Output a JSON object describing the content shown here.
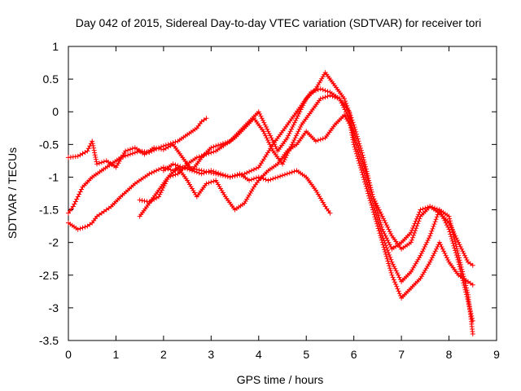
{
  "chart_data": {
    "type": "scatter",
    "title": "Day 042 of 2015, Sidereal Day-to-day VTEC variation (SDTVAR) for receiver tori",
    "xlabel": "GPS time / hours",
    "ylabel": "SDTVAR / TECUs",
    "xlim": [
      0,
      9
    ],
    "ylim": [
      -3.5,
      1
    ],
    "xticks": [
      "0",
      "1",
      "2",
      "3",
      "4",
      "5",
      "6",
      "7",
      "8",
      "9"
    ],
    "yticks": [
      "-3.5",
      "-3",
      "-2.5",
      "-2",
      "-1.5",
      "-1",
      "-0.5",
      "0",
      "0.5",
      "1"
    ],
    "grid": false,
    "marker": "+",
    "color": "#ff0000",
    "series": [
      {
        "x": [
          0.0,
          0.2,
          0.4,
          0.5,
          0.6,
          0.8,
          1.0,
          1.2,
          1.4,
          1.6,
          1.8,
          2.0,
          2.2,
          2.4,
          2.6,
          2.8,
          3.0,
          3.2,
          3.4,
          3.6,
          3.8,
          4.0,
          4.2,
          4.4,
          4.6,
          4.8,
          5.0,
          5.2,
          5.4,
          5.5
        ],
        "y": [
          -0.7,
          -0.68,
          -0.6,
          -0.45,
          -0.8,
          -0.75,
          -0.85,
          -0.6,
          -0.55,
          -0.65,
          -0.55,
          -0.58,
          -0.5,
          -0.7,
          -0.9,
          -0.95,
          -0.9,
          -0.95,
          -1.0,
          -0.95,
          -1.05,
          -1.0,
          -1.05,
          -1.0,
          -0.95,
          -0.9,
          -1.0,
          -1.2,
          -1.45,
          -1.55
        ]
      },
      {
        "x": [
          0.0,
          0.2,
          0.4,
          0.5,
          0.6,
          0.7,
          0.8,
          0.9,
          1.1,
          1.4,
          1.7,
          2.0,
          2.2,
          2.5,
          2.8,
          3.1,
          3.4,
          3.7,
          4.0,
          4.3,
          4.6,
          4.9,
          5.1,
          5.3,
          5.5,
          5.7,
          5.9,
          6.0,
          6.2,
          6.4,
          6.6,
          6.8,
          7.0,
          7.2,
          7.4,
          7.6,
          7.8,
          8.0,
          8.2,
          8.4,
          8.5
        ],
        "y": [
          -1.7,
          -1.8,
          -1.75,
          -1.7,
          -1.6,
          -1.55,
          -1.5,
          -1.45,
          -1.3,
          -1.1,
          -0.95,
          -0.85,
          -0.9,
          -0.85,
          -0.9,
          -0.95,
          -1.0,
          -0.95,
          -0.85,
          -0.5,
          -0.2,
          0.1,
          0.3,
          0.35,
          0.3,
          0.2,
          -0.1,
          -0.5,
          -1.0,
          -1.5,
          -2.0,
          -2.5,
          -2.85,
          -2.7,
          -2.55,
          -2.3,
          -2.0,
          -2.3,
          -2.5,
          -2.6,
          -2.65
        ]
      },
      {
        "x": [
          0.0,
          0.1,
          0.2,
          0.3,
          0.5,
          0.7,
          0.9,
          1.1,
          1.3,
          1.5,
          1.7,
          1.9,
          2.1,
          2.3,
          2.5,
          2.7,
          2.8,
          2.9
        ],
        "y": [
          -1.55,
          -1.45,
          -1.3,
          -1.15,
          -1.0,
          -0.9,
          -0.8,
          -0.7,
          -0.65,
          -0.6,
          -0.62,
          -0.55,
          -0.5,
          -0.45,
          -0.35,
          -0.25,
          -0.15,
          -0.1
        ]
      },
      {
        "x": [
          1.5,
          1.7,
          1.9,
          2.1,
          2.3,
          2.5,
          2.7,
          2.9,
          3.1,
          3.3,
          3.5,
          3.7,
          3.9,
          4.1,
          4.3,
          4.5,
          4.7,
          4.9,
          5.1,
          5.3,
          5.5,
          5.7,
          5.9,
          6.0,
          6.2,
          6.4,
          6.6,
          6.8,
          7.0,
          7.2,
          7.4,
          7.6,
          7.8,
          8.0,
          8.2,
          8.4,
          8.5
        ],
        "y": [
          -1.6,
          -1.4,
          -1.2,
          -1.0,
          -0.95,
          -0.8,
          -0.7,
          -0.65,
          -0.6,
          -0.5,
          -0.4,
          -0.25,
          -0.1,
          -0.3,
          -0.6,
          -0.8,
          -0.5,
          -0.2,
          0.0,
          0.2,
          0.25,
          0.2,
          0.0,
          -0.4,
          -0.9,
          -1.4,
          -1.9,
          -2.3,
          -2.6,
          -2.45,
          -2.2,
          -1.9,
          -1.5,
          -1.6,
          -2.2,
          -2.8,
          -3.4
        ]
      },
      {
        "x": [
          1.5,
          1.7,
          1.9,
          2.1,
          2.3,
          2.5,
          2.7,
          2.9,
          3.1,
          3.3,
          3.5,
          3.7,
          3.9,
          4.0,
          4.2,
          4.4,
          4.6,
          4.8,
          5.0,
          5.2,
          5.4,
          5.6,
          5.8,
          6.0,
          6.2,
          6.4,
          6.6,
          6.8,
          7.0,
          7.2,
          7.4,
          7.6,
          7.8,
          8.0,
          8.2,
          8.4,
          8.5
        ],
        "y": [
          -1.35,
          -1.38,
          -1.3,
          -1.0,
          -0.85,
          -1.05,
          -1.3,
          -1.1,
          -1.05,
          -1.3,
          -1.5,
          -1.4,
          -1.15,
          -1.05,
          -0.9,
          -0.8,
          -0.6,
          -0.5,
          -0.3,
          -0.45,
          -0.4,
          -0.2,
          -0.05,
          -0.3,
          -0.8,
          -1.3,
          -1.6,
          -1.9,
          -2.1,
          -2.0,
          -1.6,
          -1.45,
          -1.5,
          -1.8,
          -2.3,
          -2.9,
          -3.2
        ]
      },
      {
        "x": [
          2.0,
          2.2,
          2.4,
          2.6,
          2.8,
          3.0,
          3.2,
          3.4,
          3.6,
          3.8,
          4.0,
          4.2,
          4.4,
          4.6,
          4.8,
          5.0,
          5.2,
          5.4,
          5.6,
          5.8,
          6.0,
          6.2,
          6.4,
          6.6,
          6.8,
          7.0,
          7.2,
          7.4,
          7.6,
          7.8,
          8.0,
          8.2,
          8.4,
          8.5
        ],
        "y": [
          -0.9,
          -0.8,
          -0.85,
          -0.9,
          -0.7,
          -0.55,
          -0.5,
          -0.45,
          -0.3,
          -0.15,
          0.0,
          -0.3,
          -0.6,
          -0.4,
          -0.1,
          0.2,
          0.35,
          0.6,
          0.4,
          0.2,
          -0.2,
          -0.7,
          -1.3,
          -1.8,
          -2.1,
          -2.0,
          -1.85,
          -1.5,
          -1.45,
          -1.55,
          -1.7,
          -2.0,
          -2.3,
          -2.35
        ]
      }
    ]
  }
}
